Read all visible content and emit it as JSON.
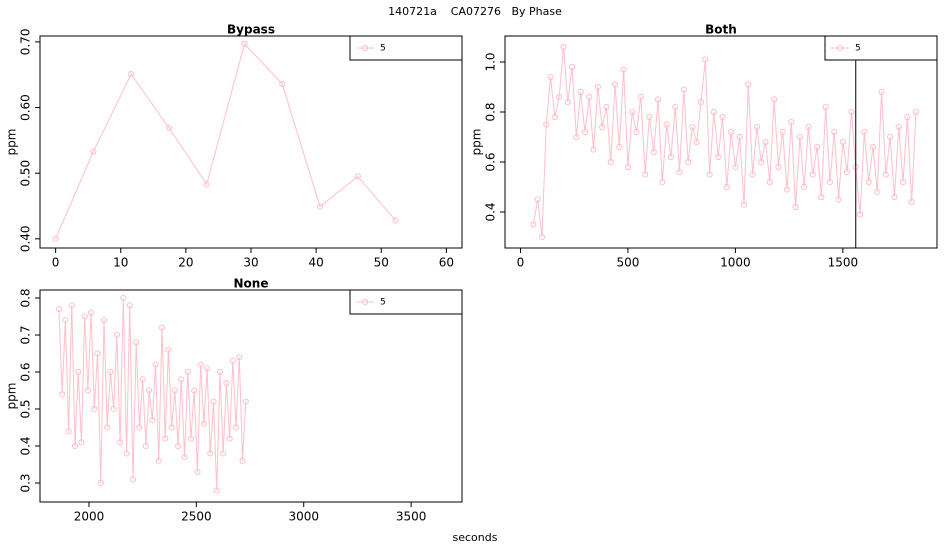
{
  "page": {
    "title": "140721a    CA07276   By Phase",
    "xlabel": "seconds"
  },
  "chart_data": [
    {
      "type": "line",
      "title": "Bypass",
      "ylabel": "ppm",
      "x": [
        0,
        5.8,
        11.6,
        17.4,
        23.2,
        29,
        34.8,
        40.6,
        46.4,
        52.2
      ],
      "series": [
        {
          "name": "5",
          "color": "#ffc0cb",
          "values": [
            0.4,
            0.533,
            0.651,
            0.569,
            0.483,
            0.697,
            0.636,
            0.449,
            0.495,
            0.428
          ]
        }
      ],
      "xlim": [
        -2.4,
        62.4
      ],
      "ylim": [
        0.386,
        0.709
      ],
      "xticks": [
        0,
        10,
        20,
        30,
        40,
        50,
        60
      ],
      "yticks": [
        {
          "value": 0.4,
          "label": "0.40"
        },
        {
          "value": 0.5,
          "label": "0.50"
        },
        {
          "value": 0.6,
          "label": "0.60"
        },
        {
          "value": 0.7,
          "label": "0.70"
        }
      ],
      "legend": "topright"
    },
    {
      "type": "line",
      "title": "Both",
      "ylabel": "ppm",
      "x": [
        60,
        80,
        100,
        120,
        140,
        160,
        180,
        200,
        220,
        240,
        260,
        280,
        300,
        320,
        340,
        360,
        380,
        400,
        420,
        440,
        460,
        480,
        500,
        520,
        540,
        560,
        580,
        600,
        620,
        640,
        660,
        680,
        700,
        720,
        740,
        760,
        780,
        800,
        820,
        840,
        860,
        880,
        900,
        920,
        940,
        960,
        980,
        1000,
        1020,
        1040,
        1060,
        1080,
        1100,
        1120,
        1140,
        1160,
        1180,
        1200,
        1220,
        1240,
        1260,
        1280,
        1300,
        1320,
        1340,
        1360,
        1380,
        1400,
        1420,
        1440,
        1460,
        1480,
        1500,
        1520,
        1540,
        1560,
        1580,
        1600,
        1620,
        1640,
        1660,
        1680,
        1700,
        1720,
        1740,
        1760,
        1780,
        1800,
        1820,
        1840
      ],
      "series": [
        {
          "name": "5",
          "color": "#ffc0cb",
          "values": [
            0.35,
            0.45,
            0.3,
            0.75,
            0.94,
            0.78,
            0.86,
            1.06,
            0.84,
            0.98,
            0.7,
            0.88,
            0.72,
            0.86,
            0.65,
            0.9,
            0.74,
            0.82,
            0.6,
            0.91,
            0.66,
            0.97,
            0.58,
            0.8,
            0.72,
            0.86,
            0.55,
            0.78,
            0.64,
            0.85,
            0.52,
            0.75,
            0.62,
            0.82,
            0.56,
            0.89,
            0.6,
            0.74,
            0.68,
            0.84,
            1.01,
            0.55,
            0.8,
            0.62,
            0.78,
            0.5,
            0.72,
            0.58,
            0.7,
            0.43,
            0.91,
            0.55,
            0.74,
            0.6,
            0.68,
            0.52,
            0.85,
            0.58,
            0.72,
            0.49,
            0.76,
            0.42,
            0.7,
            0.5,
            0.74,
            0.55,
            0.66,
            0.46,
            0.82,
            0.52,
            0.72,
            0.45,
            0.68,
            0.56,
            0.8,
            0.58,
            0.39,
            0.72,
            0.52,
            0.66,
            0.48,
            0.88,
            0.55,
            0.7,
            0.46,
            0.74,
            0.52,
            0.78,
            0.44,
            0.8
          ]
        }
      ],
      "xlim": [
        -72,
        1938
      ],
      "ylim": [
        0.256,
        1.104
      ],
      "xticks": [
        0,
        500,
        1000,
        1500
      ],
      "yticks": [
        0.4,
        0.6,
        0.8,
        {
          "value": 1.0,
          "label": "1.0"
        }
      ],
      "vline": 1560,
      "legend": "topright"
    },
    {
      "type": "line",
      "title": "None",
      "ylabel": "ppm",
      "x": [
        1860,
        1875,
        1890,
        1905,
        1920,
        1935,
        1950,
        1965,
        1980,
        1995,
        2010,
        2025,
        2040,
        2055,
        2070,
        2085,
        2100,
        2115,
        2130,
        2145,
        2160,
        2175,
        2190,
        2205,
        2220,
        2235,
        2250,
        2265,
        2280,
        2295,
        2310,
        2325,
        2340,
        2355,
        2370,
        2385,
        2400,
        2415,
        2430,
        2445,
        2460,
        2475,
        2490,
        2505,
        2520,
        2535,
        2550,
        2565,
        2580,
        2595,
        2610,
        2625,
        2640,
        2655,
        2670,
        2685,
        2700,
        2715,
        2730
      ],
      "series": [
        {
          "name": "5",
          "color": "#ffc0cb",
          "values": [
            0.77,
            0.54,
            0.74,
            0.44,
            0.78,
            0.4,
            0.6,
            0.41,
            0.75,
            0.55,
            0.76,
            0.5,
            0.65,
            0.3,
            0.74,
            0.45,
            0.6,
            0.5,
            0.7,
            0.41,
            0.8,
            0.38,
            0.78,
            0.31,
            0.68,
            0.45,
            0.58,
            0.4,
            0.55,
            0.47,
            0.62,
            0.36,
            0.72,
            0.42,
            0.66,
            0.45,
            0.55,
            0.4,
            0.58,
            0.37,
            0.6,
            0.42,
            0.55,
            0.33,
            0.62,
            0.46,
            0.61,
            0.38,
            0.52,
            0.28,
            0.6,
            0.38,
            0.57,
            0.42,
            0.63,
            0.45,
            0.64,
            0.36,
            0.52
          ]
        }
      ],
      "xlim": [
        1772,
        3737
      ],
      "ylim": [
        0.2486,
        0.8216
      ],
      "xticks": [
        2000,
        2500,
        3000,
        3500
      ],
      "yticks": [
        0.3,
        0.4,
        0.5,
        0.6,
        0.7,
        0.8
      ],
      "legend": "topright"
    }
  ]
}
